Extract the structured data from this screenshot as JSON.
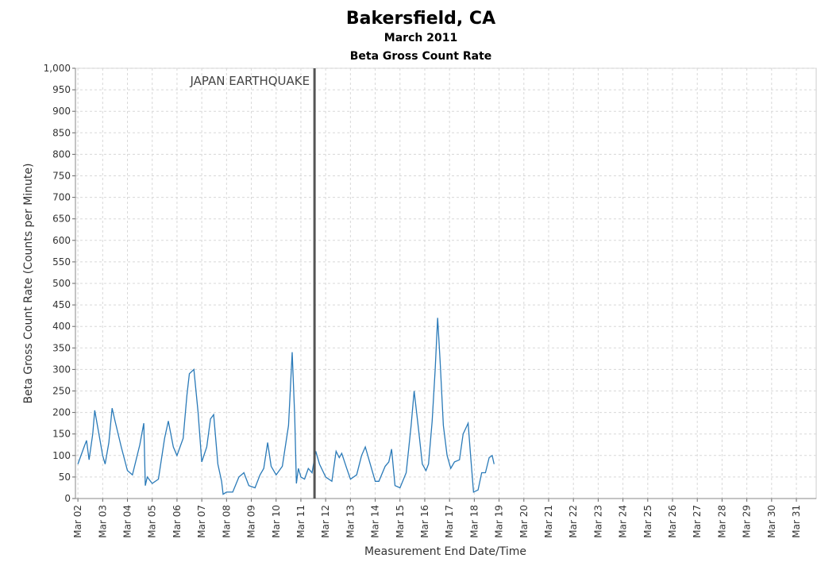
{
  "chart_data": {
    "type": "line",
    "title": "Bakersfield, CA",
    "subtitle": "March 2011",
    "subtitle2": "Beta Gross Count Rate",
    "xlabel": "Measurement End Date/Time",
    "ylabel": "Beta Gross Count Rate (Counts per Minute)",
    "xlim": [
      1.9,
      31.8
    ],
    "ylim": [
      0,
      1000
    ],
    "grid": true,
    "yticks": [
      0,
      50,
      100,
      150,
      200,
      250,
      300,
      350,
      400,
      450,
      500,
      550,
      600,
      650,
      700,
      750,
      800,
      850,
      900,
      950,
      {
        "value": 1000,
        "label": "1,000"
      }
    ],
    "xticks": [
      {
        "value": 2,
        "label": "Mar 02"
      },
      {
        "value": 3,
        "label": "Mar 03"
      },
      {
        "value": 4,
        "label": "Mar 04"
      },
      {
        "value": 5,
        "label": "Mar 05"
      },
      {
        "value": 6,
        "label": "Mar 06"
      },
      {
        "value": 7,
        "label": "Mar 07"
      },
      {
        "value": 8,
        "label": "Mar 08"
      },
      {
        "value": 9,
        "label": "Mar 09"
      },
      {
        "value": 10,
        "label": "Mar 10"
      },
      {
        "value": 11,
        "label": "Mar 11"
      },
      {
        "value": 12,
        "label": "Mar 12"
      },
      {
        "value": 13,
        "label": "Mar 13"
      },
      {
        "value": 14,
        "label": "Mar 14"
      },
      {
        "value": 15,
        "label": "Mar 15"
      },
      {
        "value": 16,
        "label": "Mar 16"
      },
      {
        "value": 17,
        "label": "Mar 17"
      },
      {
        "value": 18,
        "label": "Mar 18"
      },
      {
        "value": 19,
        "label": "Mar 19"
      },
      {
        "value": 20,
        "label": "Mar 20"
      },
      {
        "value": 21,
        "label": "Mar 21"
      },
      {
        "value": 22,
        "label": "Mar 22"
      },
      {
        "value": 23,
        "label": "Mar 23"
      },
      {
        "value": 24,
        "label": "Mar 24"
      },
      {
        "value": 25,
        "label": "Mar 25"
      },
      {
        "value": 26,
        "label": "Mar 26"
      },
      {
        "value": 27,
        "label": "Mar 27"
      },
      {
        "value": 28,
        "label": "Mar 28"
      },
      {
        "value": 29,
        "label": "Mar 29"
      },
      {
        "value": 30,
        "label": "Mar 30"
      },
      {
        "value": 31,
        "label": "Mar 31"
      }
    ],
    "annotations": [
      {
        "text": "JAPAN EARTHQUAKE",
        "x": 11.55
      }
    ],
    "series": [
      {
        "color": "#2a7ab8",
        "x": [
          2.0,
          2.25,
          2.35,
          2.45,
          2.6,
          2.68,
          2.85,
          3.0,
          3.1,
          3.25,
          3.38,
          3.5,
          3.75,
          4.0,
          4.2,
          4.5,
          4.66,
          4.72,
          4.8,
          5.0,
          5.25,
          5.5,
          5.65,
          5.85,
          6.0,
          6.25,
          6.4,
          6.5,
          6.68,
          6.85,
          7.0,
          7.2,
          7.35,
          7.48,
          7.65,
          7.8,
          7.86,
          8.0,
          8.25,
          8.5,
          8.7,
          8.9,
          9.15,
          9.35,
          9.5,
          9.66,
          9.8,
          10.0,
          10.25,
          10.5,
          10.65,
          10.75,
          10.82,
          10.9,
          11.0,
          11.15,
          11.3,
          11.45,
          11.6,
          11.75,
          12.0,
          12.25,
          12.42,
          12.55,
          12.65,
          12.85,
          13.0,
          13.25,
          13.45,
          13.6,
          13.8,
          14.0,
          14.15,
          14.4,
          14.55,
          14.66,
          14.8,
          15.0,
          15.25,
          15.45,
          15.57,
          15.75,
          15.9,
          16.05,
          16.15,
          16.3,
          16.42,
          16.52,
          16.62,
          16.75,
          16.9,
          17.05,
          17.2,
          17.4,
          17.55,
          17.75,
          17.85,
          17.97,
          18.15,
          18.3,
          18.45,
          18.6,
          18.72,
          18.8
        ],
        "values": [
          80,
          120,
          135,
          90,
          150,
          205,
          150,
          100,
          80,
          130,
          210,
          180,
          120,
          65,
          55,
          125,
          175,
          30,
          50,
          35,
          45,
          140,
          180,
          120,
          100,
          140,
          240,
          290,
          300,
          200,
          85,
          120,
          185,
          195,
          80,
          40,
          10,
          15,
          15,
          50,
          60,
          30,
          25,
          55,
          70,
          130,
          75,
          55,
          75,
          170,
          340,
          190,
          35,
          70,
          50,
          45,
          70,
          60,
          110,
          80,
          50,
          40,
          110,
          95,
          105,
          70,
          45,
          55,
          100,
          120,
          80,
          40,
          40,
          75,
          85,
          115,
          30,
          25,
          60,
          170,
          250,
          160,
          80,
          65,
          80,
          180,
          300,
          420,
          320,
          170,
          100,
          70,
          85,
          90,
          150,
          175,
          100,
          15,
          20,
          60,
          60,
          95,
          100,
          80
        ]
      }
    ]
  }
}
